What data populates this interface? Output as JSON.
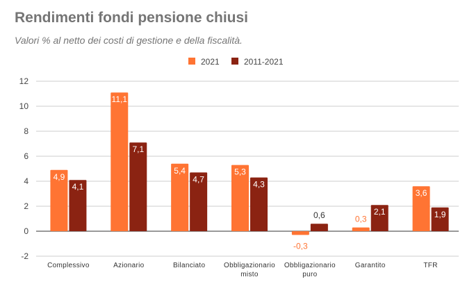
{
  "chart_data": {
    "type": "bar",
    "title": "Rendimenti fondi pensione chiusi",
    "subtitle": "Valori % al netto dei costi di gestione e della fiscalità.",
    "categories": [
      [
        "Complessivo"
      ],
      [
        "Azionario"
      ],
      [
        "Bilanciato"
      ],
      [
        "Obbligazionario",
        "misto"
      ],
      [
        "Obbligazionario",
        "puro"
      ],
      [
        "Garantito"
      ],
      [
        "TFR"
      ]
    ],
    "series": [
      {
        "name": "2021",
        "color": "#ff7433",
        "values": [
          4.9,
          11.1,
          5.4,
          5.3,
          -0.3,
          0.3,
          3.6
        ],
        "labels": [
          "4,9",
          "11,1",
          "5,4",
          "5,3",
          "-0,3",
          "0,3",
          "3,6"
        ]
      },
      {
        "name": "2011-2021",
        "color": "#8b2312",
        "values": [
          4.1,
          7.1,
          4.7,
          4.3,
          0.6,
          2.1,
          1.9
        ],
        "labels": [
          "4,1",
          "7,1",
          "4,7",
          "4,3",
          "0,6",
          "2,1",
          "1,9"
        ]
      }
    ],
    "ylim": [
      -2,
      12
    ],
    "yticks": [
      -2,
      0,
      2,
      4,
      6,
      8,
      10,
      12
    ],
    "grid": true,
    "legend": "top-center",
    "xlabel": "",
    "ylabel": ""
  }
}
